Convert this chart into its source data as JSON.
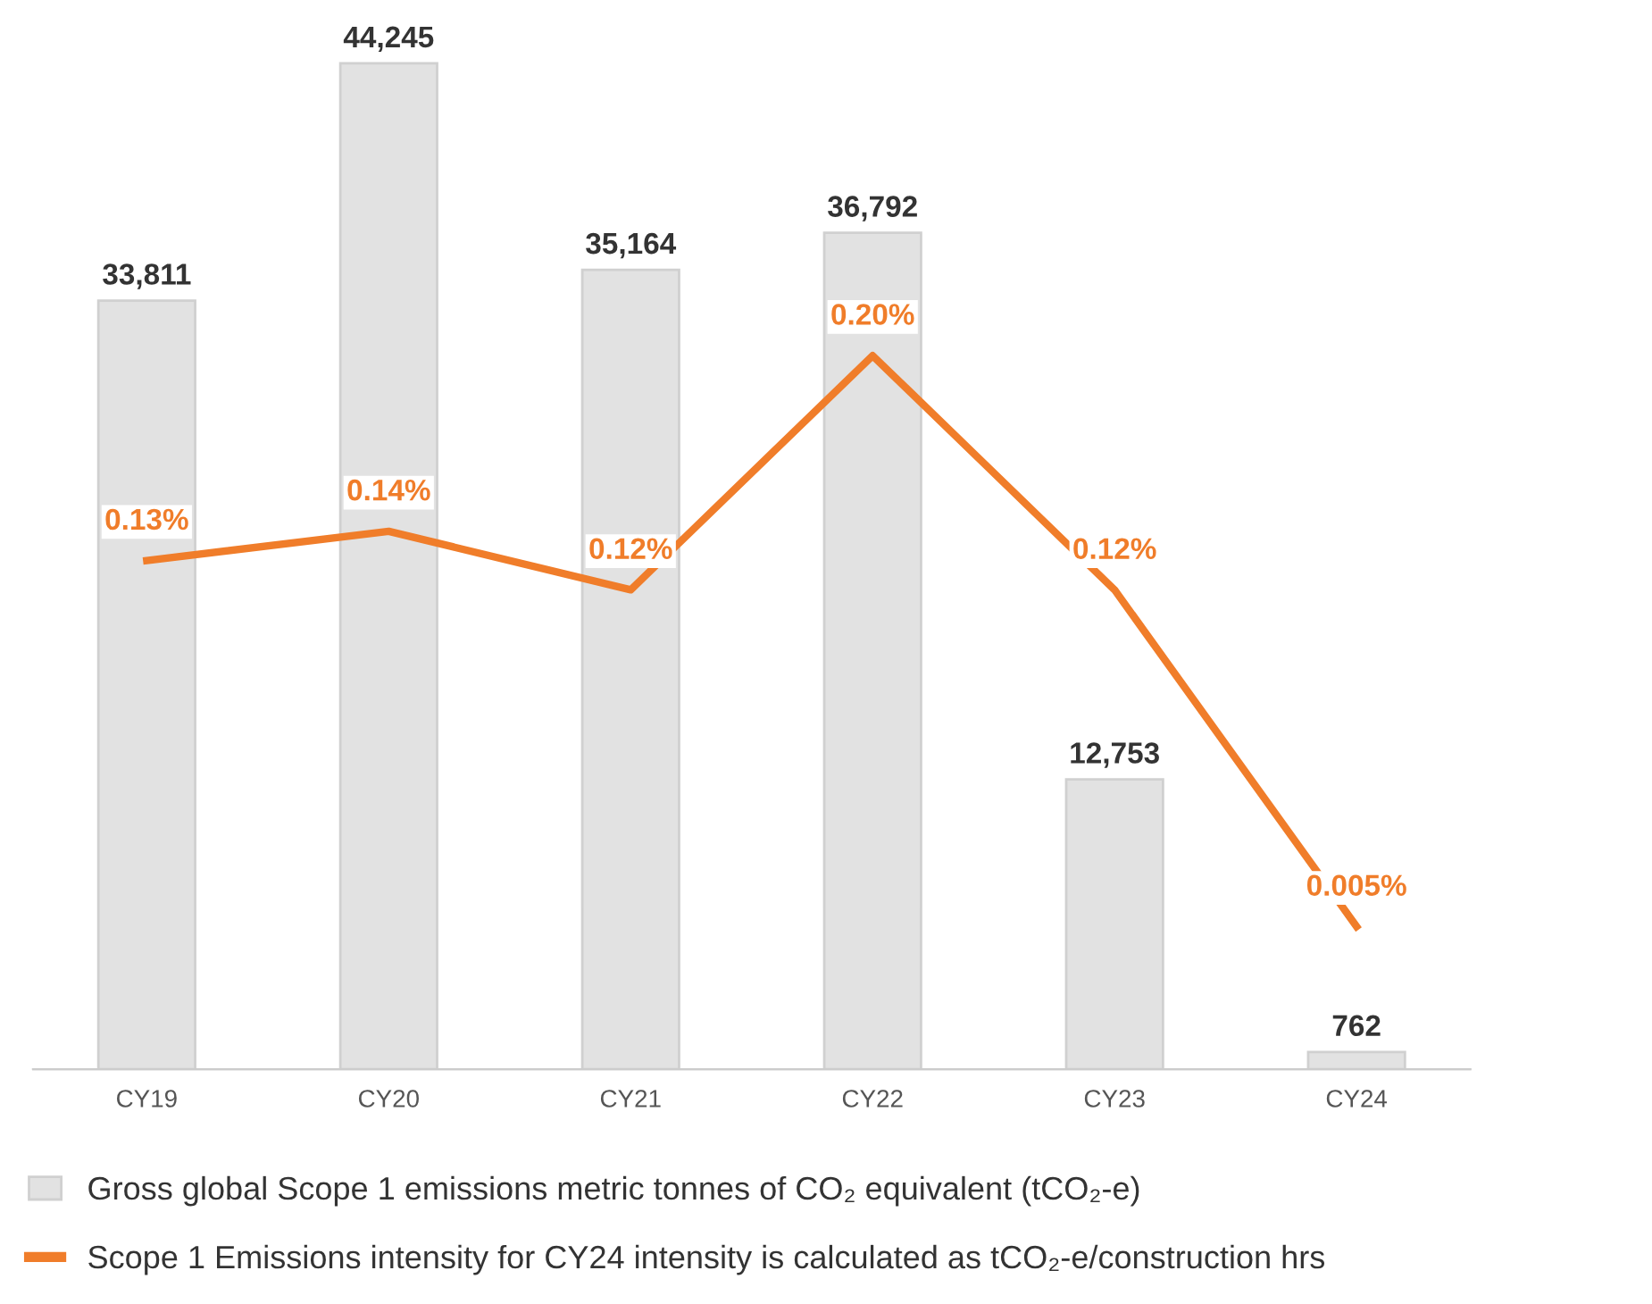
{
  "chart_data": {
    "type": "bar",
    "categories": [
      "CY19",
      "CY20",
      "CY21",
      "CY22",
      "CY23",
      "CY24"
    ],
    "series": [
      {
        "name": "Gross global Scope 1 emissions metric tonnes of CO₂ equivalent (tCO₂-e)",
        "color": "#e2e2e2",
        "values": [
          33811,
          44245,
          35164,
          36792,
          12753,
          762
        ],
        "value_labels": [
          "33,811",
          "44,245",
          "35,164",
          "36,792",
          "12,753",
          "762"
        ]
      },
      {
        "name": "Scope 1 Emissions intensity for CY24 intensity is calculated as tCO₂-e/construction hrs",
        "type": "line",
        "axis": "y2",
        "color": "#f07d2a",
        "values": [
          0.13,
          0.14,
          0.12,
          0.2,
          0.12,
          0.005
        ],
        "value_labels": [
          "0.13%",
          "0.14%",
          "0.12%",
          "0.20%",
          "0.12%",
          "0.005%"
        ]
      }
    ],
    "legend": "bottom",
    "tick_labels": "x",
    "grid": false
  }
}
